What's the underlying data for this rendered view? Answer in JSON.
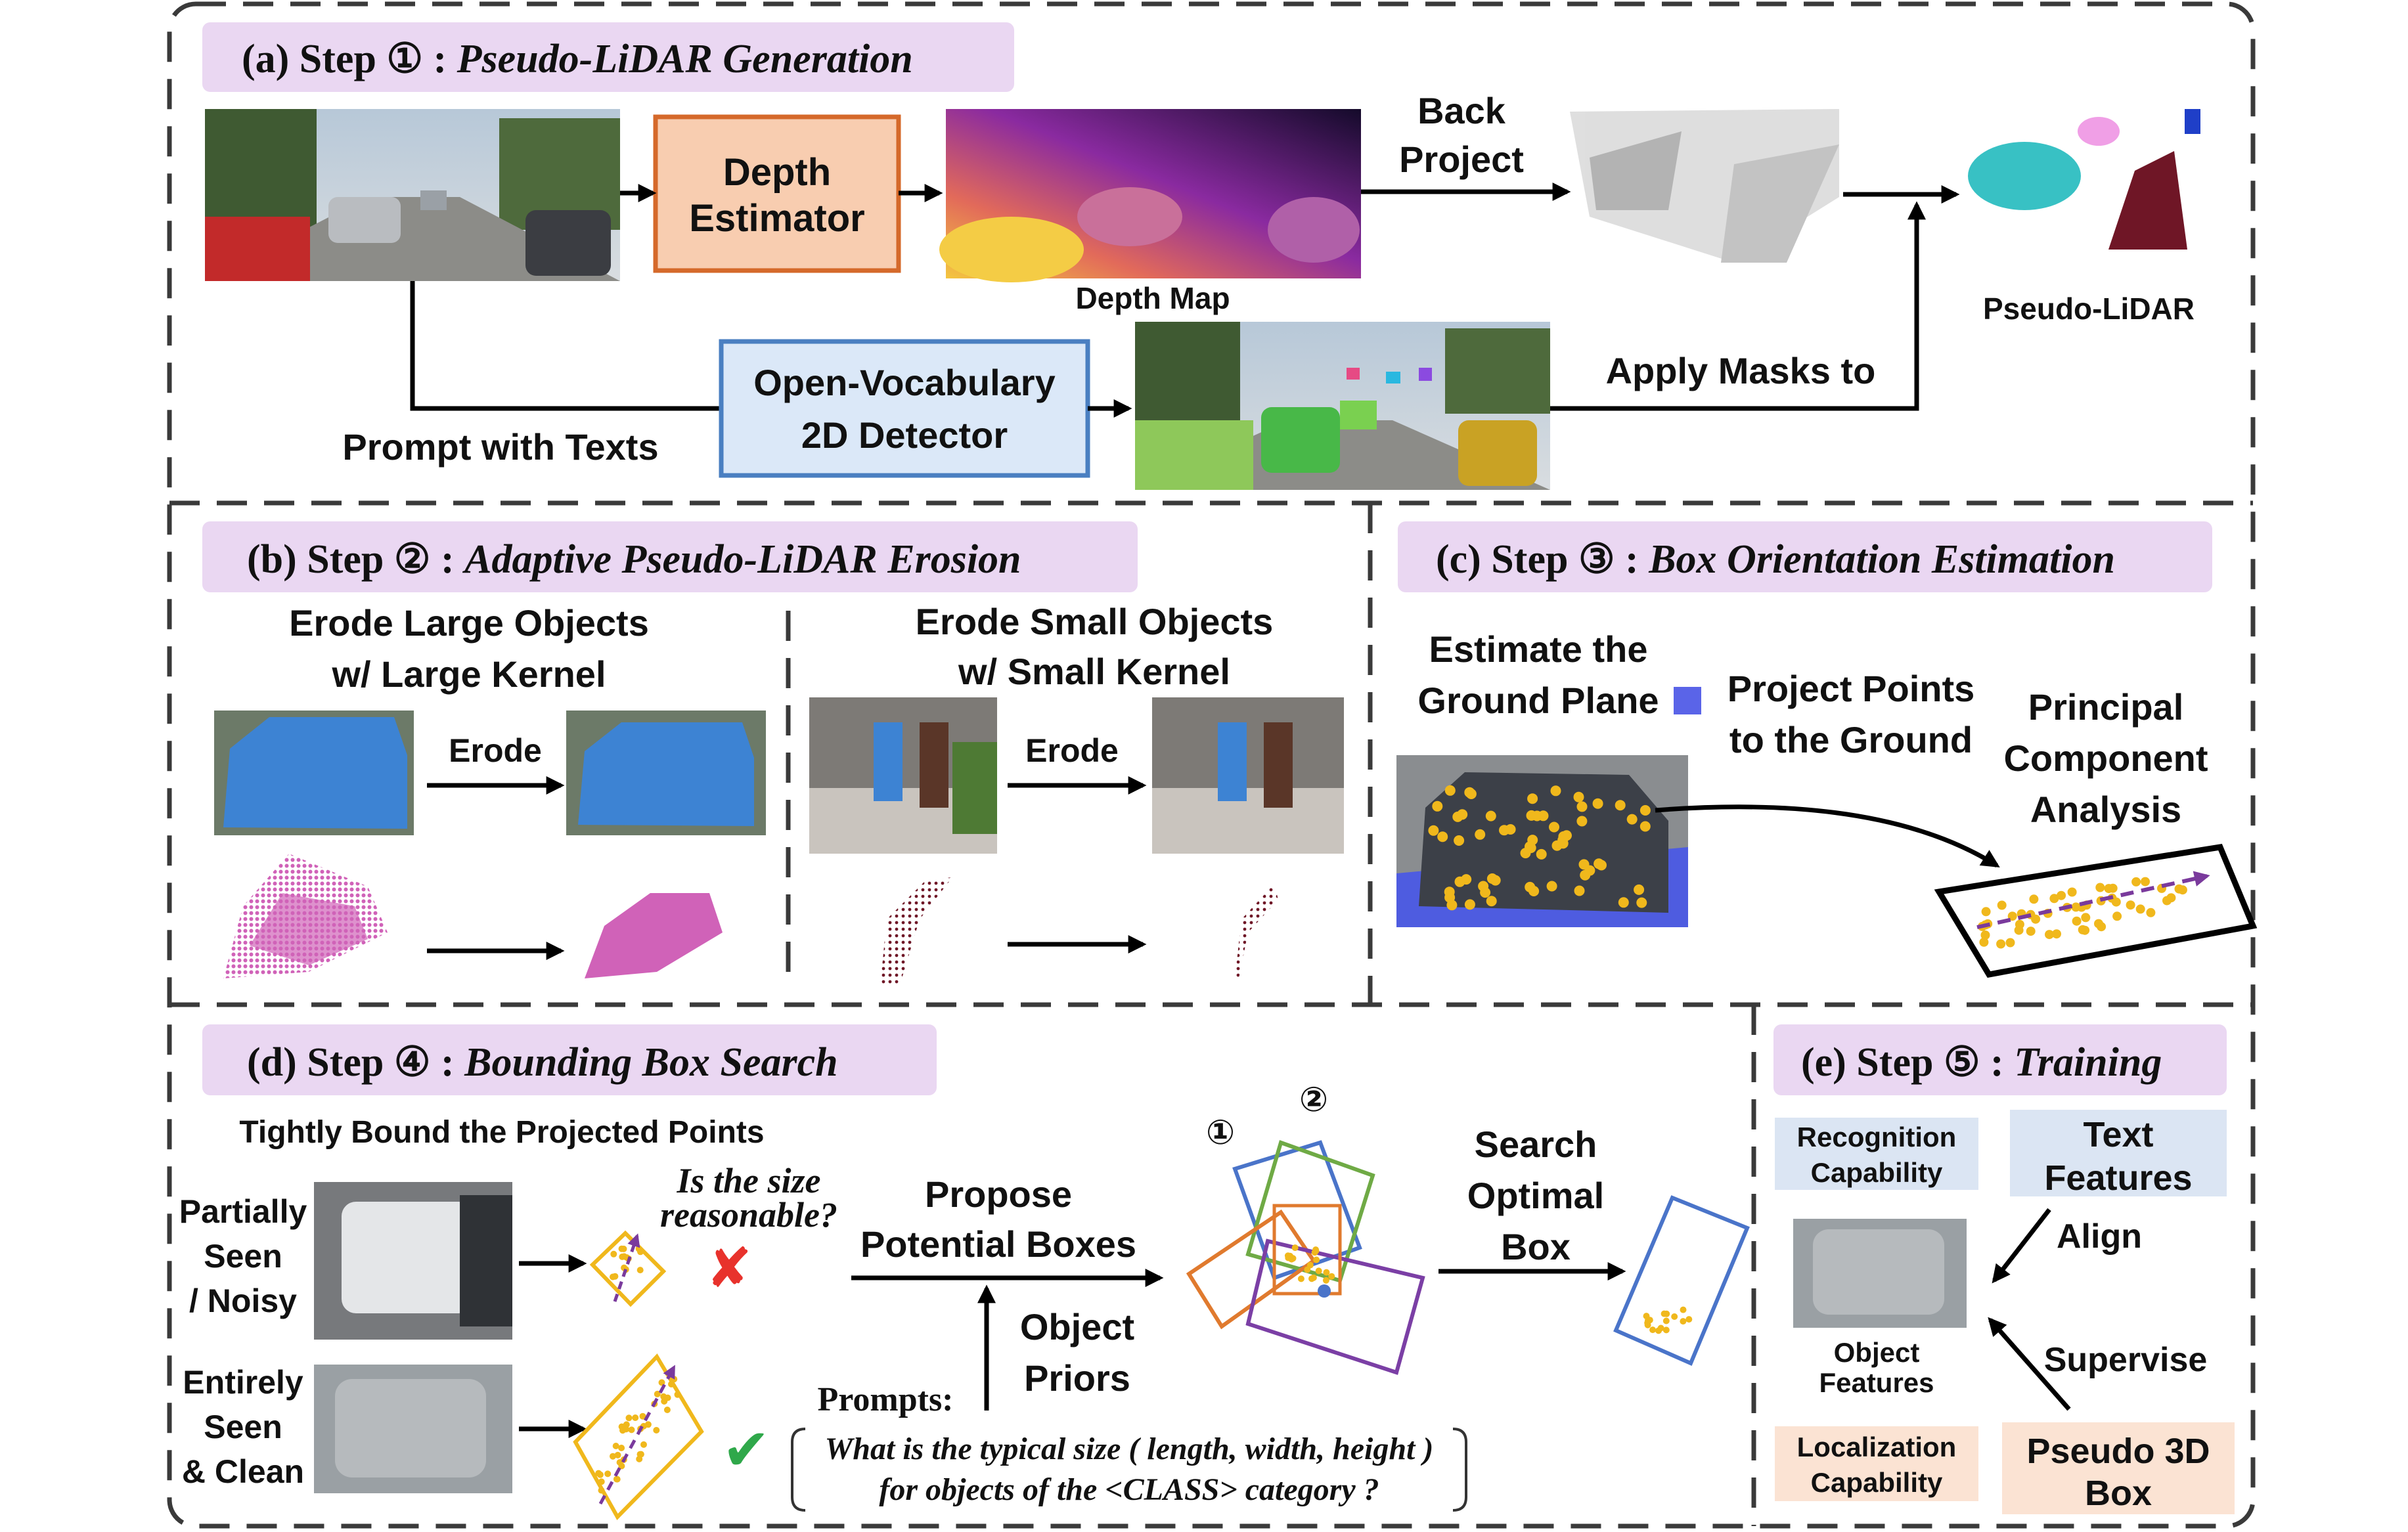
{
  "steps": {
    "a": {
      "prefix": "(a) Step ",
      "num": "①",
      "sep": " : ",
      "title": "Pseudo-LiDAR Generation"
    },
    "b": {
      "prefix": "(b) Step ",
      "num": "②",
      "sep": " : ",
      "title": "Adaptive Pseudo-LiDAR Erosion"
    },
    "c": {
      "prefix": "(c) Step ",
      "num": "③",
      "sep": " : ",
      "title": "Box Orientation Estimation"
    },
    "d": {
      "prefix": "(d) Step ",
      "num": "④",
      "sep": " : ",
      "title": "Bounding Box Search"
    },
    "e": {
      "prefix": "(e) Step ",
      "num": "⑤",
      "sep": " : ",
      "title": "Training"
    }
  },
  "a": {
    "depth_estimator": [
      "Depth",
      "Estimator"
    ],
    "depth_map": "Depth Map",
    "back_project": [
      "Back",
      "Project"
    ],
    "pseudo_lidar": "Pseudo-LiDAR",
    "ov_detector": [
      "Open-Vocabulary",
      "2D Detector"
    ],
    "prompt_texts": "Prompt with Texts",
    "apply_masks": "Apply Masks to"
  },
  "b": {
    "large": [
      "Erode Large Objects",
      "w/ Large Kernel"
    ],
    "small": [
      "Erode Small Objects",
      "w/ Small Kernel"
    ],
    "erode": "Erode"
  },
  "c": {
    "ground": [
      "Estimate the",
      "Ground Plane"
    ],
    "project": [
      "Project Points",
      "to the Ground"
    ],
    "pca": [
      "Principal",
      "Component",
      "Analysis"
    ]
  },
  "d": {
    "tightly": "Tightly Bound the Projected Points",
    "partial": [
      "Partially",
      "Seen",
      "/ Noisy"
    ],
    "entire": [
      "Entirely",
      "Seen",
      "& Clean"
    ],
    "question": [
      "Is the size",
      "reasonable?"
    ],
    "propose": [
      "Propose",
      "Potential Boxes"
    ],
    "priors": [
      "Object",
      "Priors"
    ],
    "prompts_label": "Prompts:",
    "prompt_text": [
      "What is the typical size ( length, width, height )",
      "for objects of the <CLASS> category ?"
    ],
    "circle1": "①",
    "circle2": "②",
    "search": [
      "Search",
      "Optimal",
      "Box"
    ],
    "cross": "✘",
    "check": "✔"
  },
  "e": {
    "recognition": [
      "Recognition",
      "Capability"
    ],
    "text_features": [
      "Text",
      "Features"
    ],
    "align": "Align",
    "object_features": [
      "Object",
      "Features"
    ],
    "supervise": "Supervise",
    "localization": [
      "Localization",
      "Capability"
    ],
    "pseudo_box": [
      "Pseudo 3D",
      "Box"
    ]
  },
  "colors": {
    "title_bg": "#ead7f2",
    "depth_box_fill": "#f8cdb0",
    "depth_box_stroke": "#d5692a",
    "detector_fill": "#dbe8f8",
    "detector_stroke": "#4a7fc1",
    "blue_obj": "#3d83d3",
    "pink_obj": "#d062b8",
    "maroon_obj": "#6f1626",
    "yellow_pts": "#f0b81c",
    "purple_arrow": "#7a3a9c",
    "box_blue": "#4a74c9",
    "box_green": "#6faa45",
    "box_orange": "#e07a2e",
    "box_purple": "#7b3fa5",
    "cross_red": "#e8322c",
    "check_green": "#2fa84a",
    "recog_bg": "#dbe5f3",
    "loc_bg": "#fbe3d3"
  }
}
